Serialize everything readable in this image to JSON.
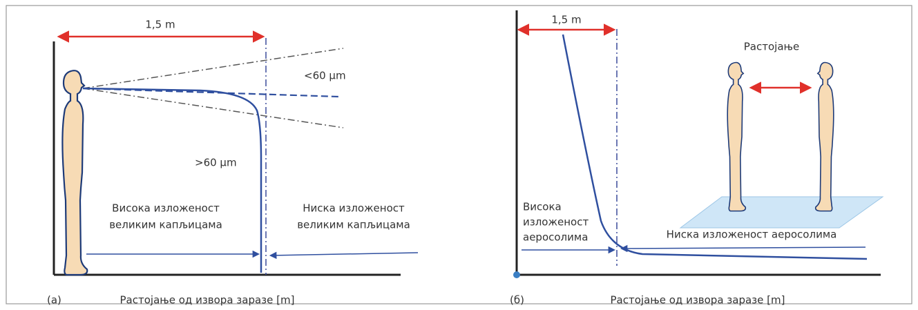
{
  "panels": [
    {
      "label": "(a)",
      "distance": "1,5 m",
      "small": "<60 μm",
      "large": ">60 μm",
      "high": [
        "Висока изложеност",
        "великим капљицама"
      ],
      "low": [
        "Ниска изложеност",
        "великим капљицама"
      ],
      "x_axis": "Растојање од извора заразе [m]"
    },
    {
      "label": "(б)",
      "distance": "1,5 m",
      "separation": "Растојање",
      "high": [
        "Висока",
        "изложеност",
        "аеросолима"
      ],
      "low": "Ниска изложеност аеросолима",
      "x_axis": "Растојање од извора заразе [m]"
    }
  ]
}
